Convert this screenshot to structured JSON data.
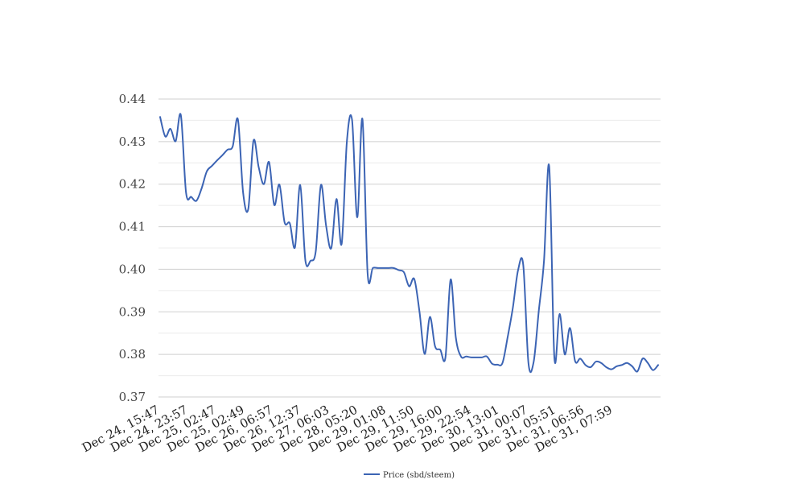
{
  "chart_data": {
    "type": "line",
    "title": "",
    "xlabel": "",
    "ylabel": "",
    "ylim": [
      0.37,
      0.44
    ],
    "yticks": [
      "0.37",
      "0.38",
      "0.39",
      "0.40",
      "0.41",
      "0.42",
      "0.43",
      "0.44"
    ],
    "x_tick_labels": [
      "Dec 24, 15:47",
      "Dec 24, 23:57",
      "Dec 25, 02:47",
      "Dec 25, 02:49",
      "Dec 26, 06:57",
      "Dec 26, 12:37",
      "Dec 27, 06:03",
      "Dec 28, 05:20",
      "Dec 29, 01:08",
      "Dec 29, 11:50",
      "Dec 29, 16:00",
      "Dec 29, 22:54",
      "Dec 30, 13:01",
      "Dec 31, 00:07",
      "Dec 31, 05:51",
      "Dec 31, 06:56",
      "Dec 31, 07:59"
    ],
    "grid": "horizontal",
    "legend_position": "bottom",
    "series": [
      {
        "name": "Price (sbd/steem)",
        "color": "#3c64b4",
        "values": [
          0.4358,
          0.4312,
          0.433,
          0.4301,
          0.4362,
          0.418,
          0.417,
          0.4161,
          0.419,
          0.423,
          0.4243,
          0.4256,
          0.4268,
          0.4281,
          0.4289,
          0.4352,
          0.418,
          0.4142,
          0.4302,
          0.424,
          0.42,
          0.4252,
          0.4151,
          0.4199,
          0.411,
          0.4108,
          0.4052,
          0.4198,
          0.4021,
          0.402,
          0.4042,
          0.4198,
          0.4102,
          0.405,
          0.4165,
          0.406,
          0.43,
          0.4351,
          0.4122,
          0.4353,
          0.399,
          0.4003,
          0.4003,
          0.4003,
          0.4003,
          0.4003,
          0.3998,
          0.3993,
          0.396,
          0.3977,
          0.39,
          0.3801,
          0.3888,
          0.3819,
          0.3811,
          0.3793,
          0.3976,
          0.384,
          0.3795,
          0.3795,
          0.3793,
          0.3793,
          0.3793,
          0.3795,
          0.3778,
          0.3776,
          0.378,
          0.3841,
          0.391,
          0.3998,
          0.401,
          0.378,
          0.3782,
          0.3903,
          0.402,
          0.4242,
          0.3792,
          0.3895,
          0.38,
          0.3862,
          0.3784,
          0.379,
          0.3775,
          0.377,
          0.3783,
          0.378,
          0.377,
          0.3765,
          0.3772,
          0.3775,
          0.378,
          0.3772,
          0.376,
          0.379,
          0.378,
          0.3763,
          0.3775
        ]
      }
    ]
  }
}
